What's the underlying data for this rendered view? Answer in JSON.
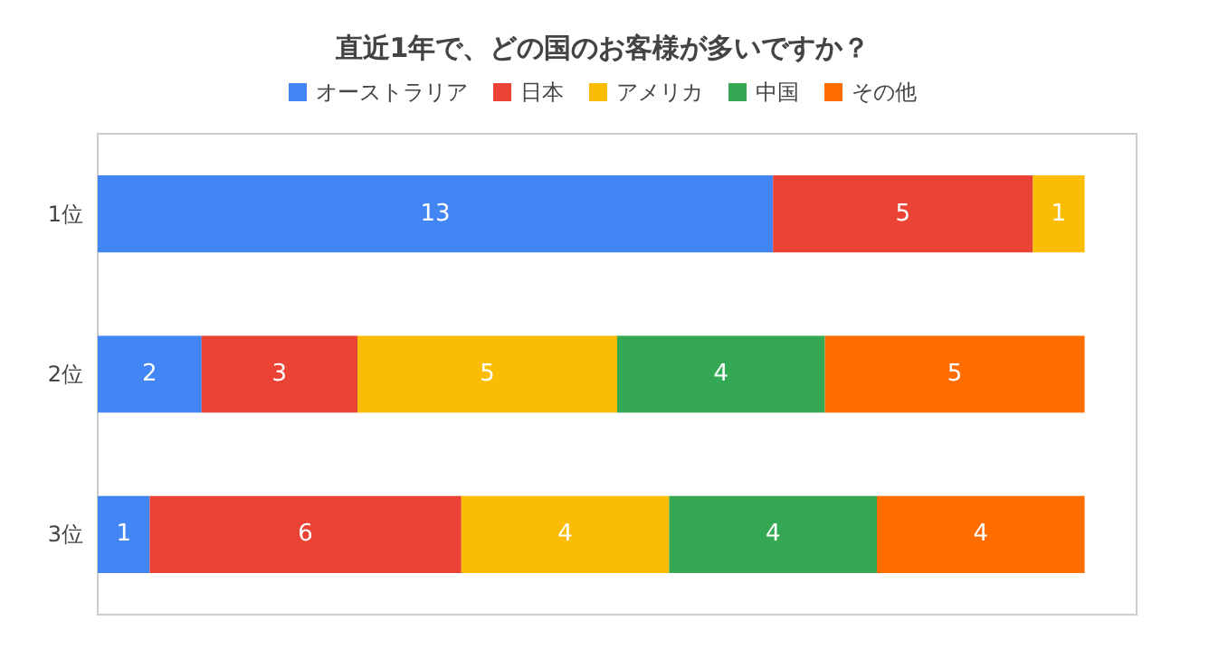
{
  "chart_data": {
    "type": "bar",
    "title": "直近1年で、どの国のお客様が多いですか？",
    "orientation": "horizontal",
    "stacked": true,
    "categories": [
      "1位",
      "2位",
      "3位"
    ],
    "series": [
      {
        "name": "オーストラリア",
        "color": "#4285f4",
        "values": [
          13,
          2,
          1
        ]
      },
      {
        "name": "日本",
        "color": "#ea4335",
        "values": [
          5,
          3,
          6
        ]
      },
      {
        "name": "アメリカ",
        "color": "#fbbc04",
        "values": [
          1,
          5,
          4
        ]
      },
      {
        "name": "中国",
        "color": "#34a853",
        "values": [
          null,
          4,
          4
        ]
      },
      {
        "name": "その他",
        "color": "#ff6d01",
        "values": [
          null,
          5,
          4
        ]
      }
    ],
    "xlim": [
      0,
      20
    ],
    "data_labels": true,
    "legend": "top",
    "grid": false,
    "tick_labels": "y"
  }
}
